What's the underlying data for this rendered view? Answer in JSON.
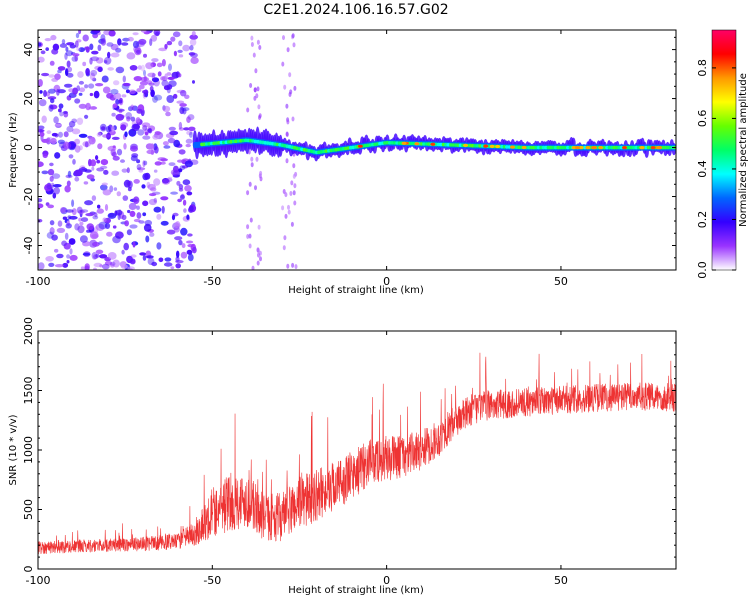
{
  "title": "C2E1.2024.106.16.57.G02",
  "chart_data": [
    {
      "type": "heatmap",
      "xlabel": "Height of straight line (km)",
      "ylabel": "Frequency (Hz)",
      "xlim": [
        -100,
        83
      ],
      "ylim": [
        -50,
        48
      ],
      "x_ticks": [
        -100,
        -50,
        0,
        50
      ],
      "y_ticks": [
        -40,
        -20,
        0,
        20,
        40
      ],
      "x_tick_labels": [
        "-100",
        "-50",
        "0",
        "50"
      ],
      "y_tick_labels": [
        "-40",
        "-20",
        "0",
        "20",
        "40"
      ],
      "colorbar": {
        "label": "Normalized spectral amplitude",
        "range": [
          0,
          0.95
        ],
        "ticks": [
          0,
          0.2,
          0.4,
          0.6,
          0.8
        ],
        "tick_labels": [
          "0.0",
          "0.2",
          "0.4",
          "0.6",
          "0.8"
        ],
        "colormap": [
          "#ffffff",
          "#9933ff",
          "#3300ff",
          "#0066ff",
          "#00ffff",
          "#00ff66",
          "#66ff00",
          "#ffff00",
          "#ff9900",
          "#ff0000",
          "#ff0066"
        ]
      },
      "signal_band": {
        "center_frequency_hz": [
          {
            "x": -55,
            "y": 1
          },
          {
            "x": -40,
            "y": 3
          },
          {
            "x": -30,
            "y": 1
          },
          {
            "x": -20,
            "y": -2
          },
          {
            "x": -5,
            "y": 1
          },
          {
            "x": 0,
            "y": 2
          },
          {
            "x": 20,
            "y": 1
          },
          {
            "x": 40,
            "y": 0
          },
          {
            "x": 60,
            "y": 0
          },
          {
            "x": 83,
            "y": 0
          }
        ],
        "noise_region_x": [
          -100,
          -55
        ],
        "peak_amplitude": 0.9
      },
      "grid": false
    },
    {
      "type": "line",
      "xlabel": "Height of straight line (km)",
      "ylabel": "SNR (10 * v/v)",
      "xlim": [
        -100,
        83
      ],
      "ylim": [
        0,
        2000
      ],
      "x_ticks": [
        -100,
        -50,
        0,
        50
      ],
      "y_ticks": [
        0,
        500,
        1000,
        1500,
        2000
      ],
      "x_tick_labels": [
        "-100",
        "-50",
        "0",
        "50"
      ],
      "y_tick_labels": [
        "0",
        "500",
        "1000",
        "1500",
        "2000"
      ],
      "color": "#ee3333",
      "series": [
        {
          "x": [
            -100,
            -90,
            -80,
            -70,
            -60,
            -55,
            -50,
            -45,
            -40,
            -35,
            -30,
            -25,
            -20,
            -15,
            -10,
            -5,
            0,
            5,
            10,
            15,
            20,
            25,
            30,
            40,
            50,
            60,
            70,
            83
          ],
          "y": [
            180,
            190,
            200,
            210,
            230,
            300,
            480,
            560,
            580,
            430,
            440,
            560,
            620,
            700,
            780,
            900,
            930,
            950,
            1000,
            1100,
            1250,
            1350,
            1380,
            1400,
            1420,
            1440,
            1450,
            1440
          ],
          "noise_amplitude": [
            100,
            100,
            100,
            110,
            120,
            200,
            400,
            450,
            420,
            350,
            380,
            420,
            400,
            380,
            380,
            350,
            350,
            330,
            300,
            280,
            260,
            240,
            230,
            220,
            220,
            220,
            220,
            220
          ]
        }
      ],
      "grid": false
    }
  ]
}
